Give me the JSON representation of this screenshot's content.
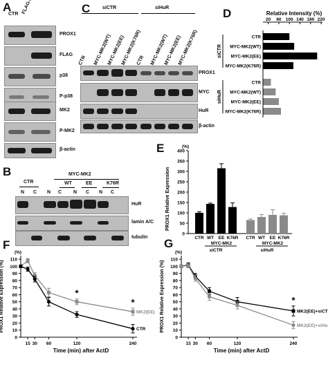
{
  "panels": {
    "A": "A",
    "B": "B",
    "C": "C",
    "D": "D",
    "E": "E",
    "F": "F",
    "G": "G"
  },
  "panelA": {
    "lanes": [
      "CTR",
      "FLAG-kapB"
    ],
    "rows": [
      "PROX1",
      "FLAG",
      "p38",
      "P-p38",
      "MK2",
      "P-MK2",
      "β-actin"
    ]
  },
  "panelB": {
    "header": "MYC-MK2",
    "groups": [
      "CTR",
      "WT",
      "EE",
      "K76R"
    ],
    "fractions": [
      "N",
      "C",
      "N",
      "C",
      "N",
      "C",
      "N",
      "C"
    ],
    "rows": [
      "HuR",
      "lamin A/C",
      "tubulin"
    ]
  },
  "panelC": {
    "groups": [
      "siCTR",
      "siHuR"
    ],
    "lanes": [
      "CTR",
      "MYC-MK2(WT)",
      "MYC-MK2(EE)",
      "MYC-MK2(K76R)",
      "CTR",
      "MYC-MK2(WT)",
      "MYC-MK2(EE)",
      "MYC-MK2(K76R)"
    ],
    "rows": [
      "PROX1",
      "MYC",
      "HuR",
      "β-actin"
    ]
  },
  "chart_data": [
    {
      "type": "bar",
      "panel": "D",
      "orientation": "horizontal",
      "title": "Relative Intensity (%)",
      "categories": [
        "CTR",
        "MYC-MK2(WT)",
        "MYC-MK2(EE)",
        "MYC-MK2(K76R)",
        "CTR",
        "MYC-MK2(WT)",
        "MYC-MK2(EE)",
        "MYC-MK2(K76R)"
      ],
      "groups": [
        "siCTR",
        "siHuR"
      ],
      "values": [
        100,
        118,
        205,
        115,
        30,
        48,
        60,
        68
      ],
      "xticks": [
        20,
        60,
        100,
        140,
        180,
        220
      ],
      "xlim": [
        0,
        225
      ],
      "colors": [
        "#000000",
        "#000000",
        "#000000",
        "#000000",
        "#8a8a8a",
        "#8a8a8a",
        "#8a8a8a",
        "#8a8a8a"
      ]
    },
    {
      "type": "bar",
      "panel": "E",
      "ylabel": "PROX1 Relative Expression",
      "yunit": "(%)",
      "yticks": [
        0,
        50,
        100,
        150,
        200,
        250,
        300,
        350,
        400
      ],
      "ylim": [
        0,
        400
      ],
      "categories": [
        "CTR",
        "WT",
        "EE",
        "K76R",
        "CTR",
        "WT",
        "EE",
        "K76R"
      ],
      "subheader": "MYC-MK2",
      "groups": [
        "siCTR",
        "siHuR"
      ],
      "values": [
        100,
        143,
        315,
        128,
        65,
        80,
        90,
        88
      ],
      "errors": [
        5,
        4,
        22,
        20,
        5,
        12,
        25,
        10
      ],
      "colors": [
        "#000000",
        "#000000",
        "#000000",
        "#000000",
        "#8a8a8a",
        "#8a8a8a",
        "#8a8a8a",
        "#8a8a8a"
      ]
    },
    {
      "type": "line",
      "panel": "F",
      "xlabel": "Time (min) after ActD",
      "ylabel": "PROX1 Relative Expression (%)",
      "x": [
        0,
        15,
        30,
        60,
        120,
        240
      ],
      "xticks": [
        15,
        30,
        60,
        120,
        240
      ],
      "yticks": [
        0,
        10,
        20,
        30,
        40,
        50,
        60,
        70,
        80,
        90,
        100,
        110
      ],
      "ylim": [
        0,
        115
      ],
      "series": [
        {
          "name": "MK2(EE)",
          "values": [
            100,
            108,
            87,
            63,
            50,
            36
          ],
          "errors": [
            2,
            3,
            4,
            6,
            4,
            5
          ],
          "color": "#8a8a8a"
        },
        {
          "name": "CTR",
          "values": [
            100,
            96,
            82,
            50,
            32,
            12
          ],
          "errors": [
            2,
            3,
            4,
            6,
            4,
            6
          ],
          "color": "#000000"
        }
      ],
      "stars": [
        120,
        240
      ]
    },
    {
      "type": "line",
      "panel": "G",
      "xlabel": "Time (min) after ActD",
      "ylabel": "PROX1 Relative Expression (%)",
      "x": [
        0,
        15,
        30,
        60,
        120,
        240
      ],
      "xticks": [
        15,
        30,
        60,
        120,
        240
      ],
      "yticks": [
        0,
        10,
        20,
        30,
        40,
        50,
        60,
        70,
        80,
        90,
        100,
        110
      ],
      "ylim": [
        0,
        115
      ],
      "series": [
        {
          "name": "MK2(EE)+siCTR",
          "values": [
            100,
            102,
            86,
            65,
            50,
            37
          ],
          "errors": [
            2,
            3,
            4,
            5,
            6,
            7
          ],
          "color": "#000000"
        },
        {
          "name": "MK2(EE)+siHuR",
          "values": [
            100,
            101,
            83,
            57,
            45,
            17
          ],
          "errors": [
            2,
            3,
            4,
            5,
            5,
            5
          ],
          "color": "#8a8a8a"
        }
      ],
      "stars": [
        240
      ]
    }
  ]
}
